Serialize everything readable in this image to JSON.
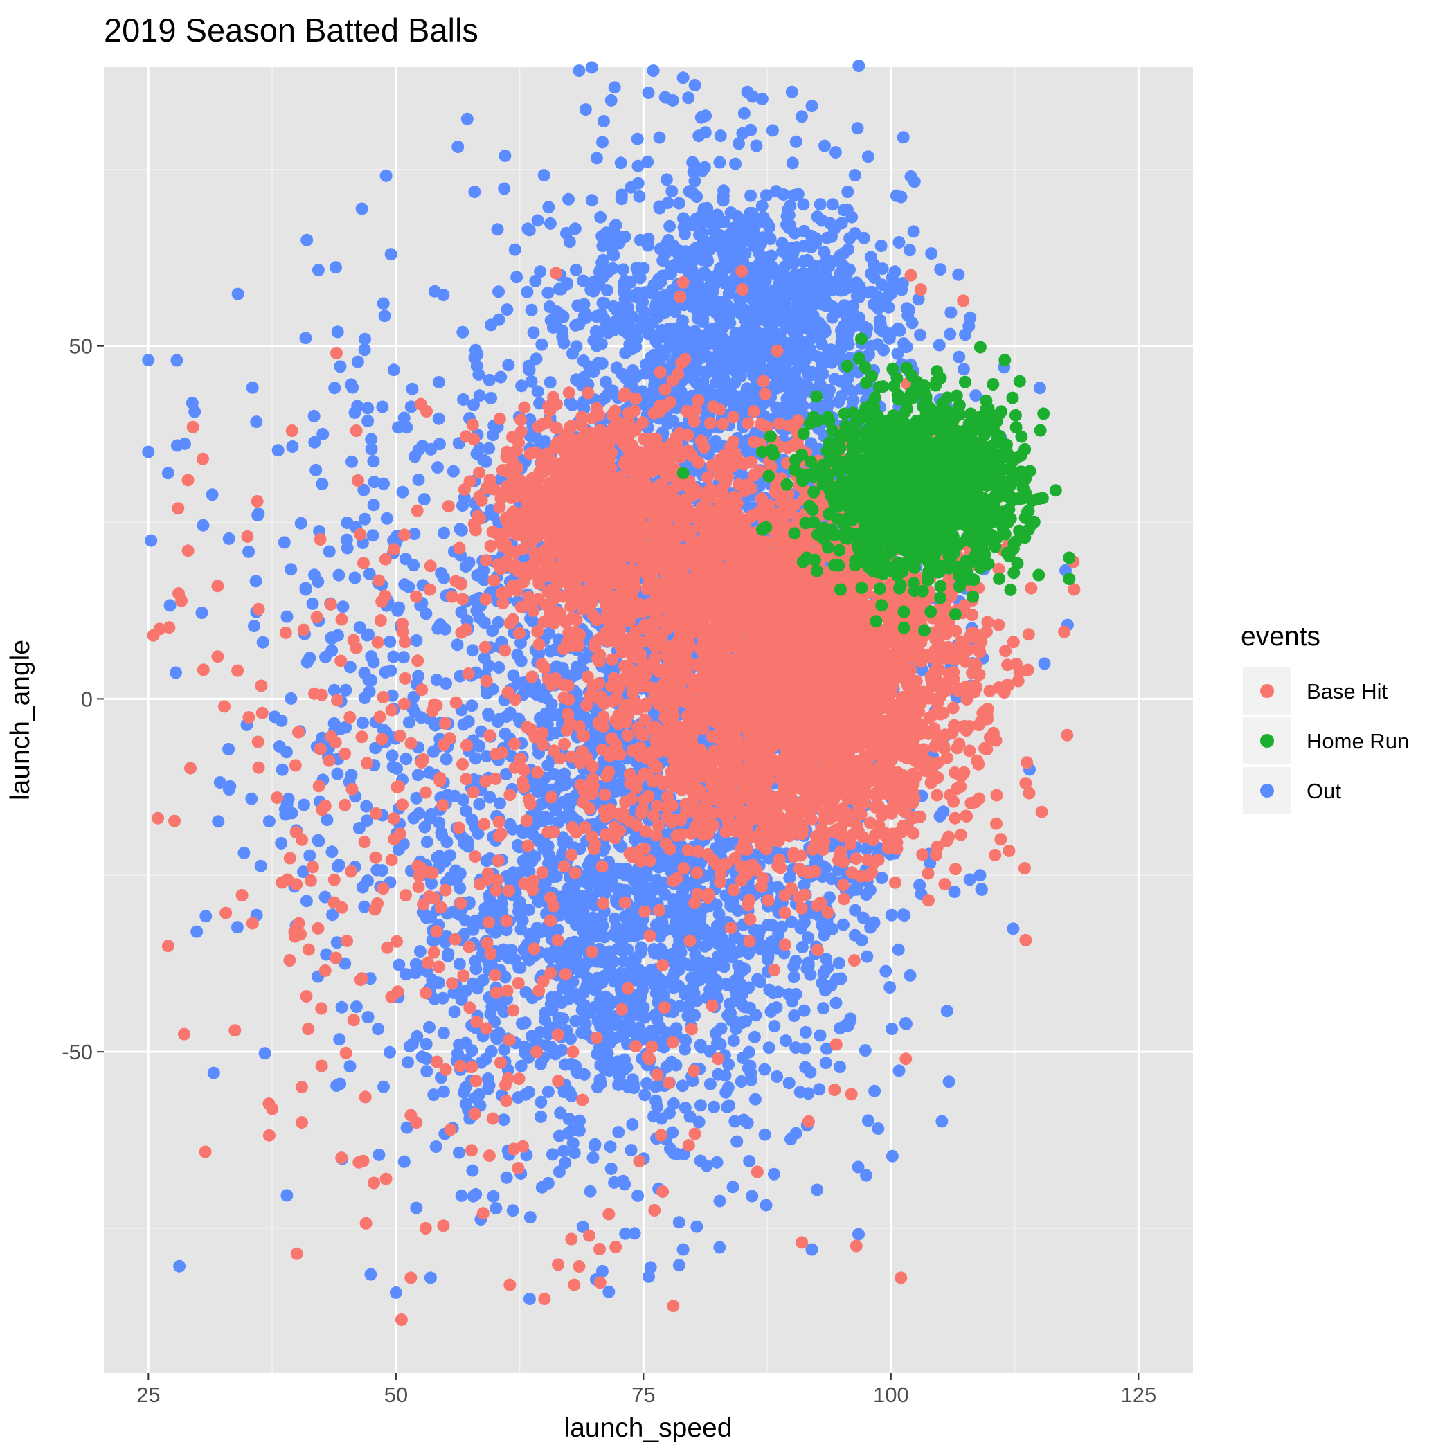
{
  "chart_data": {
    "type": "scatter",
    "title": "2019 Season Batted Balls",
    "xlabel": "launch_speed",
    "ylabel": "launch_angle",
    "xlim": [
      20.5,
      130.5
    ],
    "ylim": [
      -95.5,
      89.5
    ],
    "xticks": [
      25,
      50,
      75,
      100,
      125
    ],
    "yticks": [
      -50,
      0,
      50
    ],
    "grid": true,
    "background": "#e5e5e5",
    "legend": {
      "title": "events",
      "placement": "right",
      "entries": [
        {
          "label": "Base Hit",
          "color": "#f8766d"
        },
        {
          "label": "Home Run",
          "color": "#1cae2f"
        },
        {
          "label": "Out",
          "color": "#5b8cff"
        }
      ]
    },
    "series": [
      {
        "name": "Base Hit",
        "color": "#f8766d",
        "clusters": [
          {
            "cx": 92,
            "cy": 5,
            "sx": 8,
            "sy": 12,
            "n": 2600
          },
          {
            "cx": 70,
            "cy": 26,
            "sx": 5,
            "sy": 7,
            "n": 900
          },
          {
            "cx": 82,
            "cy": 14,
            "sx": 8,
            "sy": 13,
            "n": 900
          },
          {
            "cx": 88,
            "cy": -10,
            "sx": 10,
            "sy": 8,
            "n": 500
          },
          {
            "cx": 60,
            "cy": -20,
            "sx": 15,
            "sy": 25,
            "n": 400
          }
        ],
        "points": [
          [
            25.5,
            9
          ],
          [
            27,
            -35
          ],
          [
            28,
            27
          ],
          [
            29,
            31
          ],
          [
            29,
            21
          ],
          [
            29.5,
            38.5
          ],
          [
            30.5,
            34
          ],
          [
            32,
            6
          ],
          [
            32,
            16
          ],
          [
            34,
            4
          ],
          [
            35,
            23
          ],
          [
            36,
            28
          ],
          [
            36.5,
            -2
          ],
          [
            38,
            -14
          ],
          [
            38.5,
            -26
          ],
          [
            39.5,
            38
          ],
          [
            40.5,
            -60
          ],
          [
            40.5,
            -55
          ],
          [
            42.5,
            -52
          ],
          [
            44,
            49
          ],
          [
            44.5,
            -65
          ],
          [
            46,
            38
          ],
          [
            49,
            -68
          ],
          [
            51.5,
            -82
          ],
          [
            53,
            -75
          ],
          [
            61.5,
            -83
          ],
          [
            65,
            -85
          ],
          [
            68,
            -83
          ],
          [
            71.5,
            -73
          ],
          [
            78,
            -86
          ],
          [
            86.5,
            -67
          ],
          [
            91,
            -77
          ],
          [
            96,
            -56
          ],
          [
            96.5,
            -77.5
          ],
          [
            101.5,
            -51
          ],
          [
            101,
            -82
          ],
          [
            113.5,
            -24
          ],
          [
            118.5,
            15.5
          ],
          [
            117.5,
            9.5
          ],
          [
            103,
            58
          ],
          [
            102,
            60
          ],
          [
            79,
            59
          ],
          [
            85,
            58
          ]
        ]
      },
      {
        "name": "Home Run",
        "color": "#1cae2f",
        "clusters": [
          {
            "cx": 103,
            "cy": 30,
            "sx": 5,
            "sy": 6,
            "n": 1500
          }
        ],
        "points": [
          [
            97,
            51
          ],
          [
            98.5,
            11
          ],
          [
            106.5,
            12
          ],
          [
            111.5,
            48
          ],
          [
            113,
            45
          ],
          [
            118,
            20
          ],
          [
            118,
            17
          ],
          [
            79,
            32
          ],
          [
            87,
            35
          ],
          [
            91.5,
            20
          ],
          [
            87,
            24
          ]
        ]
      },
      {
        "name": "Out",
        "color": "#5b8cff",
        "clusters": [
          {
            "cx": 82,
            "cy": 8,
            "sx": 10,
            "sy": 30,
            "n": 3200
          },
          {
            "cx": 85,
            "cy": 55,
            "sx": 8,
            "sy": 8,
            "n": 800
          },
          {
            "cx": 70,
            "cy": -35,
            "sx": 9,
            "sy": 15,
            "n": 900
          },
          {
            "cx": 55,
            "cy": 0,
            "sx": 12,
            "sy": 30,
            "n": 600
          }
        ],
        "points": [
          [
            25,
            48
          ],
          [
            25,
            35
          ],
          [
            27,
            32
          ],
          [
            41,
            65
          ],
          [
            49.5,
            63
          ],
          [
            68.5,
            89
          ],
          [
            76,
            89
          ],
          [
            79,
            88
          ],
          [
            85.5,
            86
          ],
          [
            87,
            85
          ],
          [
            90,
            86
          ],
          [
            92,
            84
          ],
          [
            102,
            74
          ],
          [
            108,
            54
          ],
          [
            115.5,
            5
          ],
          [
            114,
            -10
          ],
          [
            109,
            -25
          ],
          [
            97.5,
            -67.5
          ],
          [
            92,
            -78
          ],
          [
            79,
            -78
          ],
          [
            71.5,
            -84
          ],
          [
            63.5,
            -85
          ],
          [
            53.5,
            -82
          ]
        ]
      }
    ]
  }
}
